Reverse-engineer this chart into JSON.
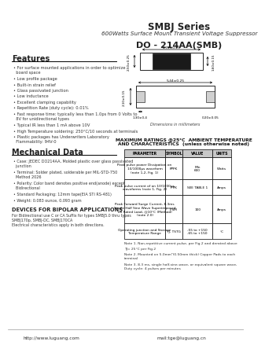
{
  "title": "SMBJ Series",
  "subtitle": "600Watts Surface Mount Transient Voltage Suppressor",
  "package": "DO - 214AA(SMB)",
  "bg_color": "#ffffff",
  "features_title": "Features",
  "features": [
    "For surface mounted applications in order to optimize\n  board space",
    "Low profile package",
    "Built-in strain relief",
    "Glass passivated junction",
    "Low inductance",
    "Excellent clamping capability",
    "Repetition Rate (duty cycle): 0.01%",
    "Fast response time: typically less than 1.0ps from 0 Volts to\n  8V for unidirectional types",
    "Typical IR less than 1 mA above 10V",
    "High Temperature soldering: 250°C/10 seconds at terminals",
    "Plastic packages has Underwriters Laboratory\n  Flammability: 94V-0"
  ],
  "mech_title": "Mechanical Data",
  "mech": [
    "Case: JEDEC DO214AA, Molded plastic over glass passivated\n  junction",
    "Terminal: Solder plated, solderable per MIL-STD-750\n  Method 2026",
    "Polarity: Color band denotes positive end(anode) except\n  Bidirectional",
    "Standard Packaging: 12mm tape(EIA STI RS-481)",
    "Weight: 0.083 ounce, 0.093 gram"
  ],
  "devices_title": "DEVICES FOR BIPOLAR APPLICATIONS",
  "devices_text": "For Bidirectional use C or CA Suffix for types SMBJ5.0 thru types\nSMBJ170p, SMBJ-DC, SMBJ170CA\nElectrical characteristics apply in both directions.",
  "ratings_title": "MAXIMUM RATINGS @25°C  AMBIENT TEMPERATURE\nAND CHARACTERISTICS  (unless otherwise noted)",
  "table_headers": [
    "PARAMETER",
    "SYMBOL",
    "VALUE",
    "UNITS"
  ],
  "table_rows": [
    [
      "Peak pulse power Dissipation on\n10/1000μs waveform\n(note 1,2, Fig. 1)",
      "PPPK",
      "Min\n600",
      "Watts"
    ],
    [
      "Peak pulse current of on 10/1000μs\nwaveforms (note 1, Fig. 2)",
      "IPPK",
      "SEE TABLE 1",
      "Amps"
    ],
    [
      "Peak Forward Surge Current, 8.3ms\nSingle Half Sine Wave Superimposed\non Rated Load, @10°C (Method)\n(note 2.0)",
      "IFSM",
      "100",
      "Amps"
    ],
    [
      "Operating junction and Storage\nTemperature Range",
      "TJ, TSTG",
      "-55 to +150\n-65 to +150",
      "°C"
    ]
  ],
  "note1": "Note 1. Non-repetitive current pulse, per Fig.2 and derated above",
  "note2": "TJ= 25°C per Fig.2",
  "note3": "Note 2. Mounted on 5.0mm²(0.50mm thick) Copper Pads to each\nterminal",
  "note4": "Note 3. 8.3 ms, single half-sine-wave, or equivalent square wave,\nDuty cycle: 4 pulses per minutes",
  "website": "http://www.luguang.com",
  "email": "mail:tge@luguang.cn",
  "dim1_top": "4.70±0.25",
  "dim1_left": "2.50±0.25",
  "dim1_right": "1.60±0.15",
  "dim2_body": "5.44±0.25",
  "dim2_height": "2.10±0.15",
  "dim2_bot_left": "1.30±0.4",
  "dim2_bot_right": "0.20±0.05",
  "dim_label": "Dimensions in millimeters"
}
